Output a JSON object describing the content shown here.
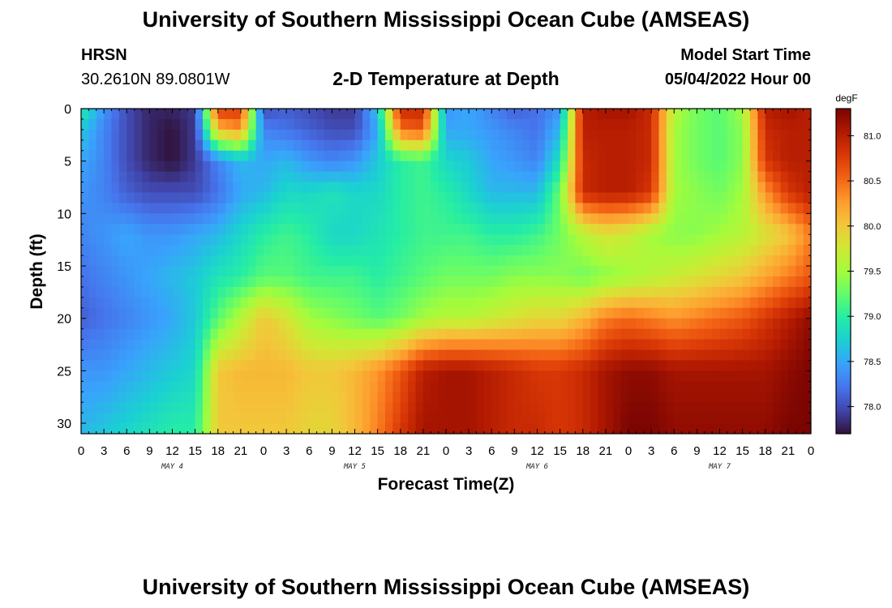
{
  "header": {
    "title": "University of Southern Mississippi Ocean Cube (AMSEAS)",
    "station": "HRSN",
    "coords": "30.2610N  89.0801W",
    "subtitle": "2-D Temperature at Depth",
    "model_label": "Model Start Time",
    "model_time": "05/04/2022 Hour 00",
    "footer_title": "University of Southern Mississippi Ocean Cube (AMSEAS)"
  },
  "chart_data": {
    "type": "heatmap",
    "title": "2-D Temperature at Depth",
    "xlabel": "Forecast Time(Z)",
    "ylabel": "Depth (ft)",
    "x_tick_labels": [
      "0",
      "3",
      "6",
      "9",
      "12",
      "15",
      "18",
      "21",
      "0",
      "3",
      "6",
      "9",
      "12",
      "15",
      "18",
      "21",
      "0",
      "3",
      "6",
      "9",
      "12",
      "15",
      "18",
      "21",
      "0",
      "3",
      "6",
      "9",
      "12",
      "15",
      "18",
      "21",
      "0"
    ],
    "day_labels": [
      "MAY 4",
      "MAY 5",
      "MAY 6",
      "MAY 7"
    ],
    "y_ticks": [
      0,
      5,
      10,
      15,
      20,
      25,
      30
    ],
    "ylim": [
      31,
      0
    ],
    "xlim_hours": [
      0,
      96
    ],
    "units": "degF",
    "colorbar": {
      "ticks": [
        "78.0",
        "78.5",
        "79.0",
        "79.5",
        "80.0",
        "80.5",
        "81.0"
      ],
      "range": [
        77.7,
        81.3
      ]
    },
    "time_hours": [
      0,
      3,
      6,
      9,
      12,
      15,
      18,
      21,
      24,
      27,
      30,
      33,
      36,
      39,
      42,
      45,
      48,
      51,
      54,
      57,
      60,
      63,
      66,
      69,
      72,
      75,
      78,
      81,
      84,
      87,
      90,
      93,
      96
    ],
    "depths_ft": [
      0,
      2,
      5,
      8,
      12,
      16,
      20,
      25,
      31
    ],
    "values_degF": [
      [
        79.0,
        78.4,
        78.0,
        77.8,
        77.8,
        77.9,
        80.8,
        80.8,
        78.0,
        78.1,
        78.0,
        77.9,
        77.9,
        78.7,
        80.9,
        80.9,
        78.4,
        78.5,
        78.3,
        78.1,
        78.2,
        78.4,
        81.0,
        81.1,
        81.1,
        80.9,
        79.6,
        79.3,
        79.2,
        79.5,
        81.0,
        81.1,
        81.0
      ],
      [
        78.7,
        78.3,
        78.0,
        77.8,
        77.7,
        77.9,
        80.1,
        80.3,
        78.3,
        78.2,
        78.1,
        78.0,
        78.0,
        78.5,
        80.5,
        80.6,
        78.5,
        78.5,
        78.4,
        78.3,
        78.2,
        78.6,
        81.0,
        81.0,
        81.0,
        80.9,
        79.5,
        79.3,
        79.2,
        79.4,
        80.9,
        81.0,
        81.0
      ],
      [
        78.5,
        78.3,
        78.0,
        77.8,
        77.7,
        77.9,
        78.3,
        78.6,
        78.5,
        78.6,
        78.4,
        78.3,
        78.4,
        78.7,
        79.0,
        79.1,
        78.8,
        78.7,
        78.5,
        78.4,
        78.3,
        78.9,
        80.9,
        81.0,
        81.0,
        80.9,
        79.5,
        79.3,
        79.2,
        79.4,
        80.8,
        81.0,
        81.0
      ],
      [
        78.4,
        78.3,
        78.1,
        78.0,
        78.0,
        78.0,
        78.2,
        78.5,
        78.6,
        78.8,
        78.8,
        78.9,
        78.8,
        78.8,
        79.0,
        79.1,
        79.0,
        78.8,
        78.6,
        78.6,
        78.6,
        79.3,
        80.9,
        81.0,
        81.0,
        80.8,
        79.5,
        79.4,
        79.3,
        79.5,
        80.3,
        80.8,
        81.0
      ],
      [
        78.3,
        78.4,
        78.5,
        78.4,
        78.4,
        78.5,
        78.6,
        78.8,
        79.0,
        79.1,
        79.0,
        78.8,
        78.8,
        78.9,
        79.0,
        79.1,
        79.1,
        79.1,
        79.0,
        79.0,
        79.1,
        79.3,
        79.6,
        79.8,
        79.7,
        79.5,
        79.4,
        79.4,
        79.5,
        79.6,
        79.8,
        80.0,
        80.4
      ],
      [
        78.2,
        78.3,
        78.4,
        78.5,
        78.6,
        78.7,
        78.9,
        79.0,
        79.2,
        79.2,
        79.1,
        79.1,
        79.1,
        79.0,
        79.1,
        79.2,
        79.3,
        79.3,
        79.3,
        79.4,
        79.4,
        79.4,
        79.3,
        79.4,
        79.5,
        79.6,
        79.7,
        79.8,
        79.9,
        80.0,
        80.2,
        80.4,
        80.6
      ],
      [
        78.1,
        78.2,
        78.3,
        78.4,
        78.5,
        78.7,
        79.2,
        79.6,
        80.0,
        79.8,
        79.5,
        79.4,
        79.3,
        79.2,
        79.3,
        79.5,
        79.6,
        79.6,
        79.7,
        79.8,
        79.9,
        79.9,
        80.1,
        80.4,
        80.5,
        80.4,
        80.3,
        80.4,
        80.5,
        80.6,
        80.8,
        81.0,
        81.2
      ],
      [
        78.4,
        78.4,
        78.5,
        78.6,
        78.7,
        78.8,
        80.0,
        80.1,
        80.1,
        80.1,
        80.0,
        80.0,
        80.1,
        80.3,
        80.6,
        81.0,
        81.1,
        81.1,
        81.0,
        80.9,
        80.8,
        80.8,
        80.9,
        81.1,
        81.2,
        81.2,
        81.1,
        81.1,
        81.1,
        81.1,
        81.1,
        81.2,
        81.3
      ],
      [
        78.6,
        78.7,
        78.8,
        78.9,
        79.0,
        79.0,
        80.0,
        80.0,
        80.0,
        80.0,
        79.9,
        79.9,
        80.1,
        80.4,
        80.8,
        81.1,
        81.1,
        81.1,
        81.0,
        80.9,
        80.9,
        80.8,
        80.9,
        81.1,
        81.3,
        81.3,
        81.2,
        81.2,
        81.2,
        81.2,
        81.2,
        81.3,
        81.3
      ]
    ]
  },
  "palette": {
    "stops": [
      "#30123b",
      "#4145ab",
      "#4675ed",
      "#39a2fc",
      "#1bcfd4",
      "#24eca6",
      "#61fc6c",
      "#a4fc3b",
      "#d1e834",
      "#f3c63a",
      "#fe9b2d",
      "#f36315",
      "#d93806",
      "#b11901",
      "#7a0402"
    ],
    "frame": "#000000"
  }
}
